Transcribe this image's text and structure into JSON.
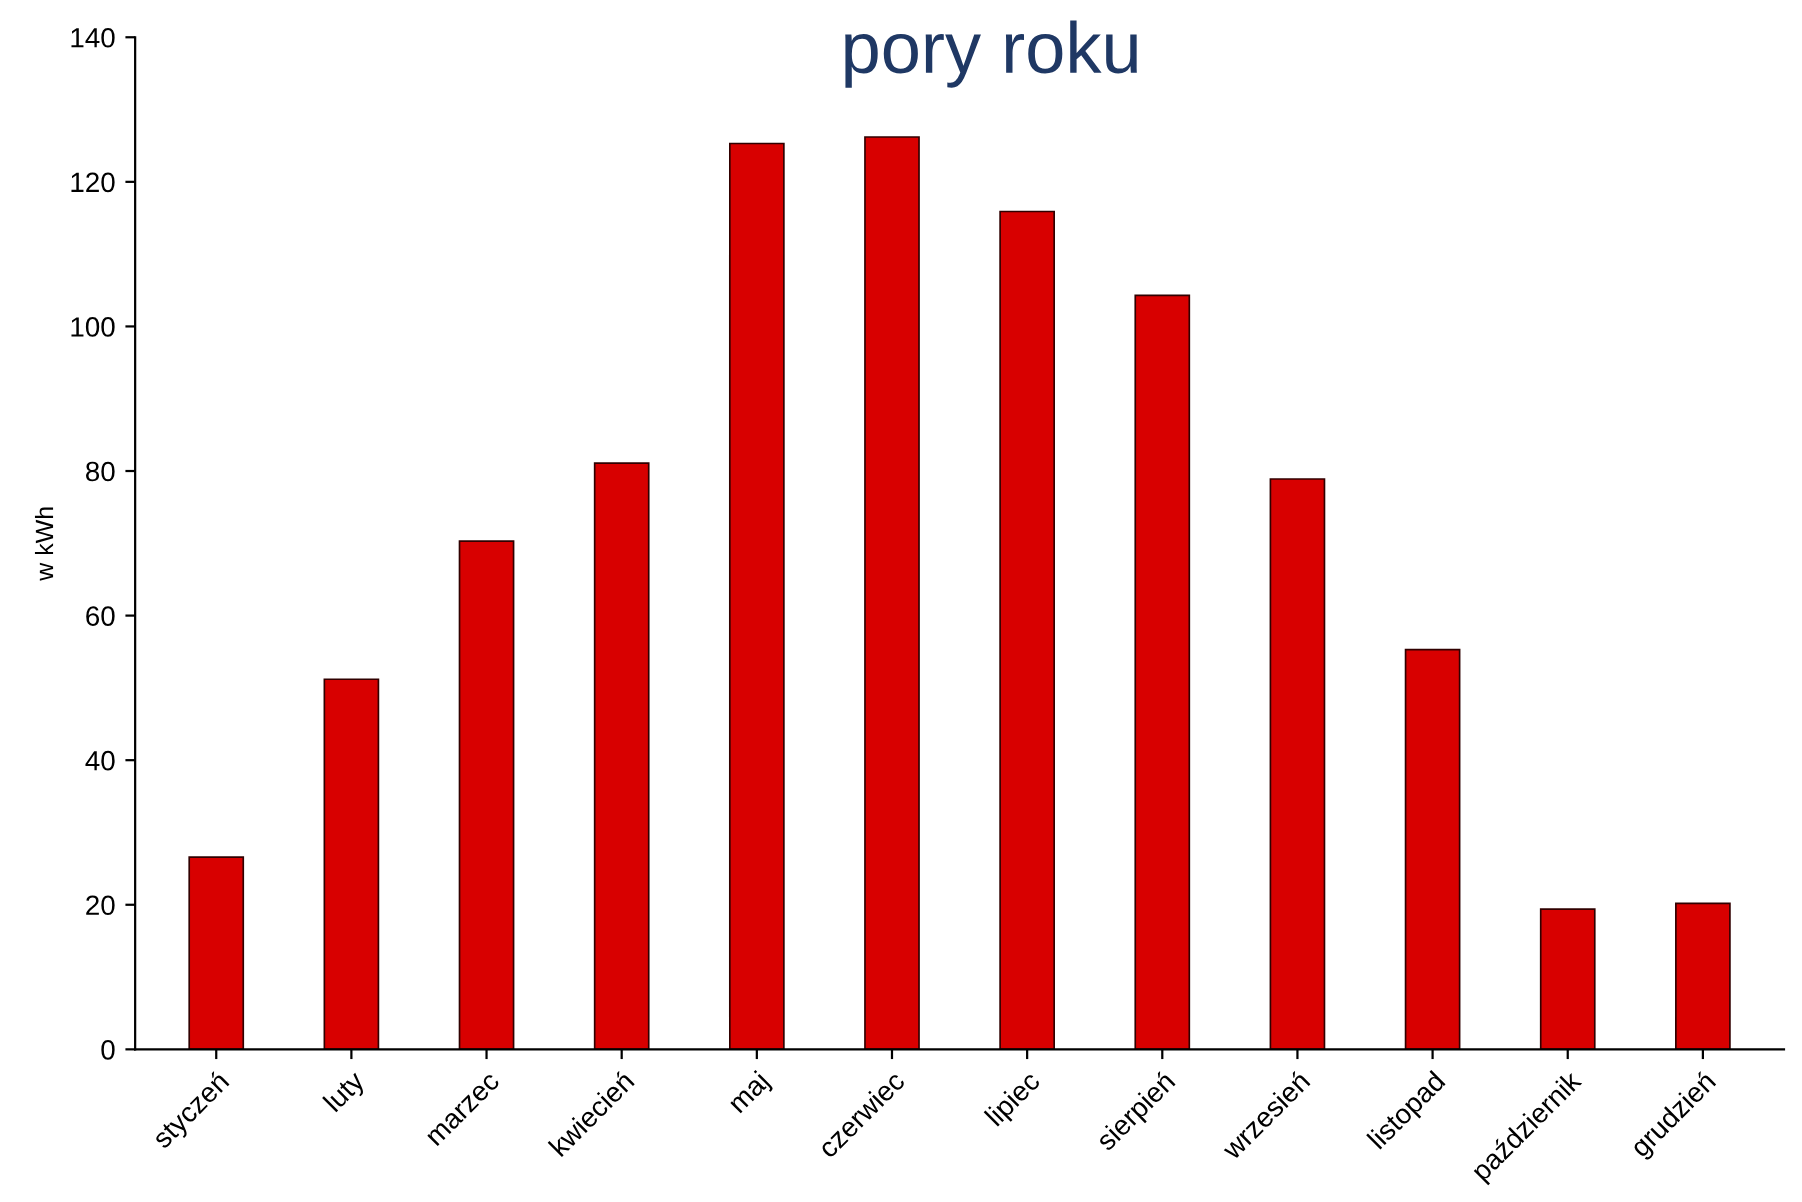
{
  "chart_data": {
    "type": "bar",
    "title": "pory roku",
    "ylabel": "w kWh",
    "categories": [
      "styczeń",
      "luty",
      "marzec",
      "kwiecień",
      "maj",
      "czerwiec",
      "lipiec",
      "sierpień",
      "wrzesień",
      "listopad",
      "październik",
      "grudzień"
    ],
    "values": [
      26.6,
      51.2,
      70.3,
      81.1,
      125.3,
      126.2,
      115.9,
      104.3,
      78.9,
      55.3,
      19.4,
      20.2
    ],
    "color": "#d80000",
    "ylim": [
      0,
      140
    ],
    "yticks": [
      0,
      20,
      40,
      60,
      80,
      100,
      120,
      140
    ],
    "grid": false,
    "legend": false
  }
}
